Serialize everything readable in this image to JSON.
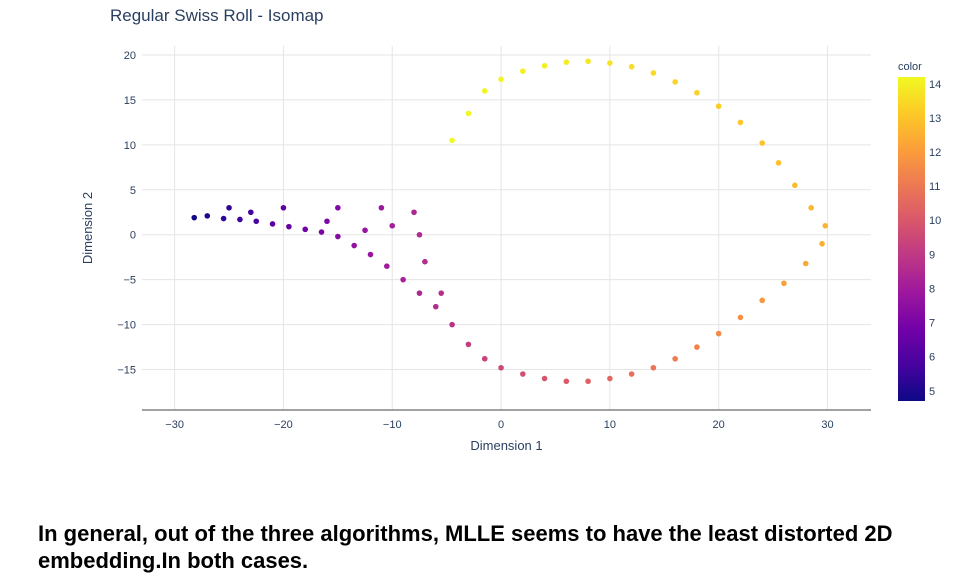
{
  "caption": "In general, out of the three algorithms, MLLE seems to have the least distorted 2D embedding.In both cases.",
  "chart_data": {
    "type": "scatter",
    "title": "Regular Swiss Roll - Isomap",
    "xlabel": "Dimension 1",
    "ylabel": "Dimension 2",
    "xlim": [
      -33,
      34
    ],
    "ylim": [
      -19.5,
      21
    ],
    "xticks": [
      -30,
      -20,
      -10,
      0,
      10,
      20,
      30
    ],
    "xtick_labels": [
      "−30",
      "−20",
      "−10",
      "0",
      "10",
      "20",
      "30"
    ],
    "yticks": [
      -15,
      -10,
      -5,
      0,
      5,
      10,
      15,
      20
    ],
    "ytick_labels": [
      "−15",
      "−10",
      "−5",
      "0",
      "5",
      "10",
      "15",
      "20"
    ],
    "grid": true,
    "colorbar": {
      "title": "color",
      "min": 4.7,
      "max": 14.2,
      "ticks": [
        5,
        6,
        7,
        8,
        9,
        10,
        11,
        12,
        13,
        14
      ],
      "tick_labels": [
        "5",
        "6",
        "7",
        "8",
        "9",
        "10",
        "11",
        "12",
        "13",
        "14"
      ],
      "colorscale": [
        "#0d0887",
        "#46039f",
        "#7201a8",
        "#9c179e",
        "#bd3786",
        "#d8576b",
        "#ed7953",
        "#fb9f3a",
        "#fdca26",
        "#f0f921"
      ]
    },
    "series": [
      {
        "points": [
          {
            "x": -28.2,
            "y": 1.9,
            "c": 4.8
          },
          {
            "x": -27.0,
            "y": 2.1,
            "c": 5.0
          },
          {
            "x": -25.5,
            "y": 1.8,
            "c": 5.3
          },
          {
            "x": -24.0,
            "y": 1.7,
            "c": 5.6
          },
          {
            "x": -22.5,
            "y": 1.5,
            "c": 5.9
          },
          {
            "x": -21.0,
            "y": 1.2,
            "c": 6.2
          },
          {
            "x": -19.5,
            "y": 0.9,
            "c": 6.5
          },
          {
            "x": -18.0,
            "y": 0.6,
            "c": 6.8
          },
          {
            "x": -16.5,
            "y": 0.3,
            "c": 7.0
          },
          {
            "x": -15.0,
            "y": -0.2,
            "c": 7.3
          },
          {
            "x": -13.5,
            "y": -1.2,
            "c": 7.6
          },
          {
            "x": -12.0,
            "y": -2.2,
            "c": 7.8
          },
          {
            "x": -10.5,
            "y": -3.5,
            "c": 8.0
          },
          {
            "x": -9.0,
            "y": -5.0,
            "c": 8.2
          },
          {
            "x": -7.5,
            "y": -6.5,
            "c": 8.4
          },
          {
            "x": -6.0,
            "y": -8.0,
            "c": 8.6
          },
          {
            "x": -4.5,
            "y": -10.0,
            "c": 8.8
          },
          {
            "x": -3.0,
            "y": -12.2,
            "c": 9.1
          },
          {
            "x": -1.5,
            "y": -13.8,
            "c": 9.3
          },
          {
            "x": 0.0,
            "y": -14.8,
            "c": 9.5
          },
          {
            "x": 2.0,
            "y": -15.5,
            "c": 9.7
          },
          {
            "x": 4.0,
            "y": -16.0,
            "c": 9.9
          },
          {
            "x": 6.0,
            "y": -16.3,
            "c": 10.1
          },
          {
            "x": 8.0,
            "y": -16.3,
            "c": 10.3
          },
          {
            "x": 10.0,
            "y": -16.0,
            "c": 10.5
          },
          {
            "x": 12.0,
            "y": -15.5,
            "c": 10.7
          },
          {
            "x": 14.0,
            "y": -14.8,
            "c": 10.9
          },
          {
            "x": 16.0,
            "y": -13.8,
            "c": 11.1
          },
          {
            "x": 18.0,
            "y": -12.5,
            "c": 11.3
          },
          {
            "x": 20.0,
            "y": -11.0,
            "c": 11.5
          },
          {
            "x": 22.0,
            "y": -9.2,
            "c": 11.7
          },
          {
            "x": 24.0,
            "y": -7.3,
            "c": 11.9
          },
          {
            "x": 26.0,
            "y": -5.4,
            "c": 12.1
          },
          {
            "x": 28.0,
            "y": -3.2,
            "c": 12.3
          },
          {
            "x": 29.5,
            "y": -1.0,
            "c": 12.5
          },
          {
            "x": 29.8,
            "y": 1.0,
            "c": 12.6
          },
          {
            "x": 28.5,
            "y": 3.0,
            "c": 12.7
          },
          {
            "x": 27.0,
            "y": 5.5,
            "c": 12.8
          },
          {
            "x": 25.5,
            "y": 8.0,
            "c": 12.9
          },
          {
            "x": 24.0,
            "y": 10.2,
            "c": 13.0
          },
          {
            "x": 22.0,
            "y": 12.5,
            "c": 13.1
          },
          {
            "x": 20.0,
            "y": 14.3,
            "c": 13.2
          },
          {
            "x": 18.0,
            "y": 15.8,
            "c": 13.3
          },
          {
            "x": 16.0,
            "y": 17.0,
            "c": 13.4
          },
          {
            "x": 14.0,
            "y": 18.0,
            "c": 13.5
          },
          {
            "x": 12.0,
            "y": 18.7,
            "c": 13.6
          },
          {
            "x": 10.0,
            "y": 19.1,
            "c": 13.7
          },
          {
            "x": 8.0,
            "y": 19.3,
            "c": 13.8
          },
          {
            "x": 6.0,
            "y": 19.2,
            "c": 13.9
          },
          {
            "x": 4.0,
            "y": 18.8,
            "c": 14.0
          },
          {
            "x": 2.0,
            "y": 18.2,
            "c": 14.05
          },
          {
            "x": 0.0,
            "y": 17.3,
            "c": 14.1
          },
          {
            "x": -1.5,
            "y": 16.0,
            "c": 14.12
          },
          {
            "x": -3.0,
            "y": 13.5,
            "c": 14.15
          },
          {
            "x": -4.5,
            "y": 10.5,
            "c": 14.2
          },
          {
            "x": -25.0,
            "y": 3.0,
            "c": 5.4
          },
          {
            "x": -20.0,
            "y": 3.0,
            "c": 6.3
          },
          {
            "x": -15.0,
            "y": 3.0,
            "c": 7.2
          },
          {
            "x": -11.0,
            "y": 3.0,
            "c": 7.9
          },
          {
            "x": -8.0,
            "y": 2.5,
            "c": 8.4
          },
          {
            "x": -7.5,
            "y": 0.0,
            "c": 8.5
          },
          {
            "x": -7.0,
            "y": -3.0,
            "c": 8.6
          },
          {
            "x": -5.5,
            "y": -6.5,
            "c": 8.7
          },
          {
            "x": -10.0,
            "y": 1.0,
            "c": 8.1
          },
          {
            "x": -12.5,
            "y": 0.5,
            "c": 7.7
          },
          {
            "x": -16.0,
            "y": 1.5,
            "c": 7.1
          },
          {
            "x": -23.0,
            "y": 2.5,
            "c": 5.8
          }
        ]
      }
    ]
  }
}
